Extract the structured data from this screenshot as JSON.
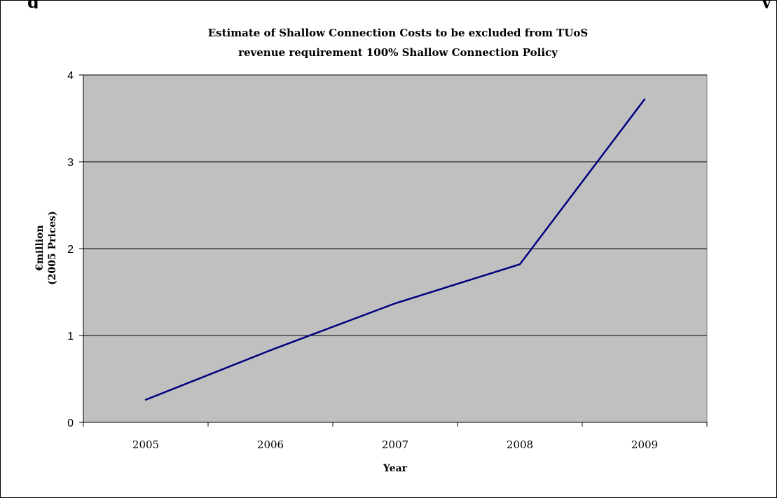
{
  "heading_fragment": {
    "lead": "g",
    "tail": "y"
  },
  "chart_data": {
    "type": "line",
    "title": [
      "Estimate of Shallow Connection Costs to be excluded from TUoS",
      "revenue requirement 100% Shallow Connection Policy"
    ],
    "xlabel": "Year",
    "ylabel": [
      "€million",
      "(2005 Prices)"
    ],
    "categories": [
      "2005",
      "2006",
      "2007",
      "2008",
      "2009"
    ],
    "series": [
      {
        "values": [
          0.26,
          0.83,
          1.37,
          1.82,
          3.72
        ],
        "color": "#000080"
      }
    ],
    "ylim": [
      0,
      4
    ],
    "yticks": [
      0,
      1,
      2,
      3,
      4
    ],
    "grid": true,
    "plot_background": "#c0c0c0",
    "gridline_color": "#000000",
    "legend": "none"
  }
}
